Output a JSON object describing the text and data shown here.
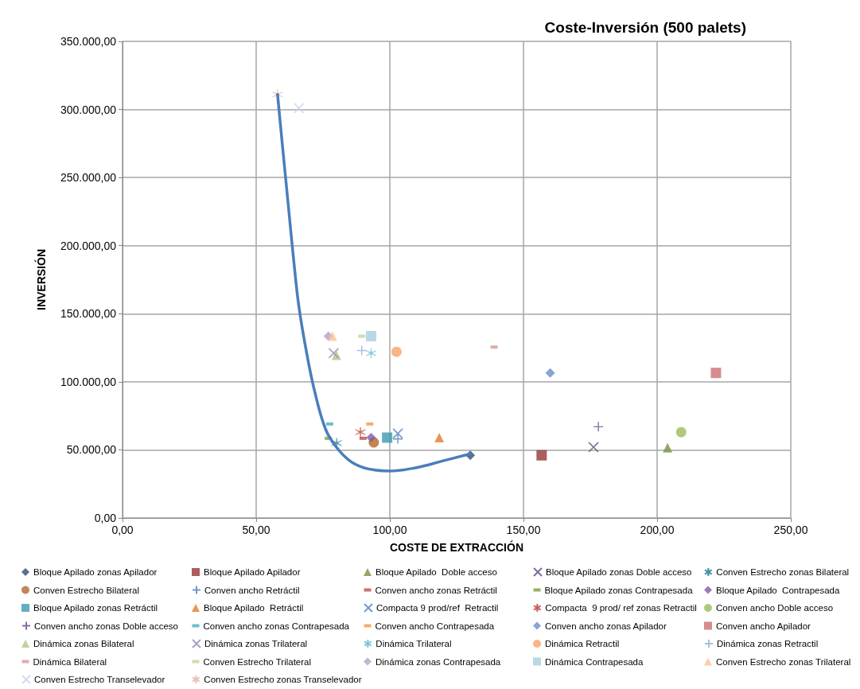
{
  "chart_data": {
    "type": "scatter",
    "title": "Coste-Inversión (500 palets)",
    "xlabel": "COSTE DE EXTRACCIÓN",
    "ylabel": "INVERSIÓN",
    "xlim": [
      0,
      250
    ],
    "xticks": [
      {
        "value": 0,
        "label": "0,00"
      },
      {
        "value": 50,
        "label": "50,00"
      },
      {
        "value": 100,
        "label": "100,00"
      },
      {
        "value": 150,
        "label": "150,00"
      },
      {
        "value": 200,
        "label": "200,00"
      },
      {
        "value": 250,
        "label": "250,00"
      }
    ],
    "ylim": [
      0,
      350000
    ],
    "yticks": [
      {
        "value": 0,
        "label": "0,00"
      },
      {
        "value": 50000,
        "label": "50.000,00"
      },
      {
        "value": 100000,
        "label": "100.000,00"
      },
      {
        "value": 150000,
        "label": "150.000,00"
      },
      {
        "value": 200000,
        "label": "200.000,00"
      },
      {
        "value": 250000,
        "label": "250.000,00"
      },
      {
        "value": 300000,
        "label": "300.000,00"
      },
      {
        "value": 350000,
        "label": "350.000,00"
      }
    ],
    "grid": true,
    "legend": "bottom",
    "series": [
      {
        "name": "Bloque Apilado zonas Apilador",
        "color": "#2c4d75",
        "marker": "diamond",
        "x": [
          130.1
        ],
        "values": [
          46000
        ]
      },
      {
        "name": "Bloque Apilado Apilador",
        "color": "#953735",
        "marker": "square",
        "x": [
          156.8
        ],
        "values": [
          46000
        ]
      },
      {
        "name": "Bloque Apilado  Doble acceso",
        "color": "#77933c",
        "marker": "triangle",
        "x": [
          203.9
        ],
        "values": [
          51500
        ]
      },
      {
        "name": "Bloque Apilado zonas Doble acceso",
        "color": "#5f497a",
        "marker": "x",
        "x": [
          176.2
        ],
        "values": [
          52000
        ]
      },
      {
        "name": "Conven Estrecho zonas Bilateral",
        "color": "#31859c",
        "marker": "cross",
        "x": [
          80.1
        ],
        "values": [
          55000
        ]
      },
      {
        "name": "Conven Estrecho Bilateral",
        "color": "#b7652b",
        "marker": "circle",
        "x": [
          94
        ],
        "values": [
          55500
        ]
      },
      {
        "name": "Conven ancho Retráctil",
        "color": "#4a7ebb",
        "marker": "plus",
        "x": [
          103
        ],
        "values": [
          58000
        ]
      },
      {
        "name": "Conven ancho zonas Retráctil",
        "color": "#be4b48",
        "x": [
          90
        ],
        "values": [
          58500
        ]
      },
      {
        "name": "Bloque Apilado zonas Contrapesada",
        "color": "#7d9f3c",
        "x": [
          77
        ],
        "values": [
          58500
        ]
      },
      {
        "name": "Bloque Apilado  Contrapesada",
        "color": "#7d5fa0",
        "marker": "diamond",
        "x": [
          93
        ],
        "values": [
          59000
        ]
      },
      {
        "name": "Bloque Apilado zonas Retráctil",
        "color": "#3b9ab0",
        "marker": "square",
        "x": [
          99
        ],
        "values": [
          59000
        ]
      },
      {
        "name": "Bloque Apilado  Retráctil",
        "color": "#e57a2a",
        "marker": "triangle",
        "x": [
          118.5
        ],
        "values": [
          59000
        ]
      },
      {
        "name": "Compacta 9 prod/ref  Retractil",
        "color": "#4f81bd",
        "marker": "x",
        "x": [
          103
        ],
        "values": [
          62000
        ]
      },
      {
        "name": "Compacta  9 prod/ ref zonas Retractil",
        "color": "#c0504d",
        "marker": "cross",
        "x": [
          89
        ],
        "values": [
          63000
        ]
      },
      {
        "name": "Conven ancho Doble acceso",
        "color": "#9bbb59",
        "marker": "circle",
        "x": [
          209
        ],
        "values": [
          63000
        ]
      },
      {
        "name": "Conven ancho zonas Doble acceso",
        "color": "#6a4a8e",
        "marker": "plus",
        "x": [
          178
        ],
        "values": [
          67000
        ]
      },
      {
        "name": "Conven ancho zonas Contrapesada",
        "color": "#4bacc6",
        "x": [
          77.5
        ],
        "values": [
          69000
        ]
      },
      {
        "name": "Conven ancho Contrapesada",
        "color": "#f79646",
        "x": [
          92.5
        ],
        "values": [
          69000
        ]
      },
      {
        "name": "Conven ancho zonas Apilador",
        "color": "#6a8fc8",
        "marker": "diamond",
        "x": [
          160
        ],
        "values": [
          106500
        ]
      },
      {
        "name": "Conven ancho Apilador",
        "color": "#c9706e",
        "marker": "square",
        "x": [
          222
        ],
        "values": [
          106500
        ]
      },
      {
        "name": "Dinámica zonas Bilateral",
        "color": "#aec883",
        "marker": "triangle",
        "x": [
          80
        ],
        "values": [
          119500
        ]
      },
      {
        "name": "Dinámica zonas Trilateral",
        "color": "#9b87b7",
        "marker": "x",
        "x": [
          79
        ],
        "values": [
          121000
        ]
      },
      {
        "name": "Dinámica Trilateral",
        "color": "#6fc2d6",
        "marker": "cross",
        "x": [
          93
        ],
        "values": [
          121000
        ]
      },
      {
        "name": "Dinámica Retractil",
        "color": "#f9a365",
        "marker": "circle",
        "x": [
          102.5
        ],
        "values": [
          122000
        ]
      },
      {
        "name": "Dinámica zonas Retractil",
        "color": "#95aed6",
        "marker": "plus",
        "x": [
          89.5
        ],
        "values": [
          123000
        ]
      },
      {
        "name": "Dinámica Bilateral",
        "color": "#d99694",
        "x": [
          139
        ],
        "values": [
          125500
        ]
      },
      {
        "name": "Conven Estrecho Trilateral",
        "color": "#c3d69b",
        "x": [
          89.5
        ],
        "values": [
          133500
        ]
      },
      {
        "name": "Dinámica zonas Contrapesada",
        "color": "#b2a2c7",
        "marker": "diamond",
        "x": [
          77
        ],
        "values": [
          133500
        ]
      },
      {
        "name": "Dinámica Contrapesada",
        "color": "#a5cfdf",
        "marker": "square",
        "x": [
          93
        ],
        "values": [
          133500
        ]
      },
      {
        "name": "Conven Estrecho zonas Trilateral",
        "color": "#fac09a",
        "marker": "triangle",
        "x": [
          78.5
        ],
        "values": [
          133500
        ]
      },
      {
        "name": "Conven Estrecho Transelevador",
        "color": "#c6d3ea",
        "marker": "x",
        "x": [
          66
        ],
        "values": [
          301000
        ]
      },
      {
        "name": "Conven Estrecho zonas Transelevador",
        "color": "#e6b9b8",
        "marker": "cross",
        "x": [
          58
        ],
        "values": [
          311000
        ]
      },
      {
        "type": "line",
        "color": "#4a7ebb",
        "marker": "none",
        "x": [
          58,
          60,
          62,
          64,
          66,
          69,
          72,
          76,
          80,
          85,
          90,
          95,
          100,
          110,
          120,
          130
        ],
        "values": [
          311000,
          270000,
          230000,
          190000,
          155000,
          120000,
          92000,
          65000,
          52000,
          42000,
          37000,
          35000,
          34500,
          37000,
          42000,
          47000
        ]
      }
    ]
  }
}
